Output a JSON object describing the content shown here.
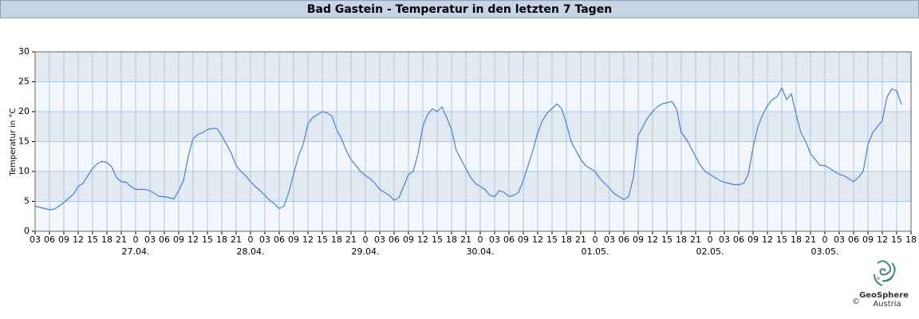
{
  "chart_data": {
    "type": "line",
    "title": "Bad Gastein - Temperatur in den letzten 7 Tagen",
    "y_label": "Temperatur in °C",
    "logo": {
      "name": "GeoSphere",
      "country": "Austria",
      "copyright": "©"
    },
    "color": "#4a7fd6",
    "grid": true,
    "ylim": [
      0,
      30
    ],
    "yticks": [
      0,
      5,
      10,
      15,
      20,
      25,
      30
    ],
    "xlim": [
      0,
      183
    ],
    "xticks": [
      {
        "value": 0,
        "label": "03"
      },
      {
        "value": 3,
        "label": "06"
      },
      {
        "value": 6,
        "label": "09"
      },
      {
        "value": 9,
        "label": "12"
      },
      {
        "value": 12,
        "label": "15"
      },
      {
        "value": 15,
        "label": "18"
      },
      {
        "value": 18,
        "label": "21"
      },
      {
        "value": 21,
        "label": "0"
      },
      {
        "value": 24,
        "label": "03"
      },
      {
        "value": 27,
        "label": "06"
      },
      {
        "value": 30,
        "label": "09"
      },
      {
        "value": 33,
        "label": "12"
      },
      {
        "value": 36,
        "label": "15"
      },
      {
        "value": 39,
        "label": "18"
      },
      {
        "value": 42,
        "label": "21"
      },
      {
        "value": 45,
        "label": "0"
      },
      {
        "value": 48,
        "label": "03"
      },
      {
        "value": 51,
        "label": "06"
      },
      {
        "value": 54,
        "label": "09"
      },
      {
        "value": 57,
        "label": "12"
      },
      {
        "value": 60,
        "label": "15"
      },
      {
        "value": 63,
        "label": "18"
      },
      {
        "value": 66,
        "label": "21"
      },
      {
        "value": 69,
        "label": "0"
      },
      {
        "value": 72,
        "label": "03"
      },
      {
        "value": 75,
        "label": "06"
      },
      {
        "value": 78,
        "label": "09"
      },
      {
        "value": 81,
        "label": "12"
      },
      {
        "value": 84,
        "label": "15"
      },
      {
        "value": 87,
        "label": "18"
      },
      {
        "value": 90,
        "label": "21"
      },
      {
        "value": 93,
        "label": "0"
      },
      {
        "value": 96,
        "label": "03"
      },
      {
        "value": 99,
        "label": "06"
      },
      {
        "value": 102,
        "label": "09"
      },
      {
        "value": 105,
        "label": "12"
      },
      {
        "value": 108,
        "label": "15"
      },
      {
        "value": 111,
        "label": "18"
      },
      {
        "value": 114,
        "label": "21"
      },
      {
        "value": 117,
        "label": "0"
      },
      {
        "value": 120,
        "label": "03"
      },
      {
        "value": 123,
        "label": "06"
      },
      {
        "value": 126,
        "label": "09"
      },
      {
        "value": 129,
        "label": "12"
      },
      {
        "value": 132,
        "label": "15"
      },
      {
        "value": 135,
        "label": "18"
      },
      {
        "value": 138,
        "label": "21"
      },
      {
        "value": 141,
        "label": "0"
      },
      {
        "value": 144,
        "label": "03"
      },
      {
        "value": 147,
        "label": "06"
      },
      {
        "value": 150,
        "label": "09"
      },
      {
        "value": 153,
        "label": "12"
      },
      {
        "value": 156,
        "label": "15"
      },
      {
        "value": 159,
        "label": "18"
      },
      {
        "value": 162,
        "label": "21"
      },
      {
        "value": 165,
        "label": "0"
      },
      {
        "value": 168,
        "label": "03"
      },
      {
        "value": 171,
        "label": "06"
      },
      {
        "value": 174,
        "label": "09"
      },
      {
        "value": 177,
        "label": "12"
      },
      {
        "value": 180,
        "label": "15"
      },
      {
        "value": 183,
        "label": "18"
      }
    ],
    "date_ticks": [
      {
        "value": 21,
        "label": "27.04."
      },
      {
        "value": 45,
        "label": "28.04."
      },
      {
        "value": 69,
        "label": "29.04."
      },
      {
        "value": 93,
        "label": "30.04."
      },
      {
        "value": 117,
        "label": "01.05."
      },
      {
        "value": 141,
        "label": "02.05."
      },
      {
        "value": 165,
        "label": "03.05."
      }
    ],
    "x": [
      0,
      1,
      2,
      3,
      4,
      5,
      6,
      7,
      8,
      9,
      10,
      11,
      12,
      13,
      14,
      15,
      16,
      17,
      18,
      19,
      20,
      21,
      22,
      23,
      24,
      25,
      26,
      27,
      28,
      29,
      30,
      31,
      32,
      33,
      34,
      35,
      36,
      37,
      38,
      39,
      40,
      41,
      42,
      43,
      44,
      45,
      46,
      47,
      48,
      49,
      50,
      51,
      52,
      53,
      54,
      55,
      56,
      57,
      58,
      59,
      60,
      61,
      62,
      63,
      64,
      65,
      66,
      67,
      68,
      69,
      70,
      71,
      72,
      73,
      74,
      75,
      76,
      77,
      78,
      79,
      80,
      81,
      82,
      83,
      84,
      85,
      86,
      87,
      88,
      89,
      90,
      91,
      92,
      93,
      94,
      95,
      96,
      97,
      98,
      99,
      100,
      101,
      102,
      103,
      104,
      105,
      106,
      107,
      108,
      109,
      110,
      111,
      112,
      113,
      114,
      115,
      116,
      117,
      118,
      119,
      120,
      121,
      122,
      123,
      124,
      125,
      126,
      127,
      128,
      129,
      130,
      131,
      132,
      133,
      134,
      135,
      136,
      137,
      138,
      139,
      140,
      141,
      142,
      143,
      144,
      145,
      146,
      147,
      148,
      149,
      150,
      151,
      152,
      153,
      154,
      155,
      156,
      157,
      158,
      159,
      160,
      161,
      162,
      163,
      164,
      165,
      166,
      167,
      168,
      169,
      170,
      171,
      172,
      173,
      174,
      175,
      176,
      177,
      178,
      179,
      180,
      181
    ],
    "values": [
      4.2,
      4.0,
      3.8,
      3.6,
      3.7,
      4.2,
      4.8,
      5.5,
      6.2,
      7.5,
      8.0,
      9.3,
      10.5,
      11.3,
      11.7,
      11.5,
      10.8,
      9.0,
      8.3,
      8.2,
      7.5,
      7.0,
      7.0,
      7.0,
      6.8,
      6.3,
      5.8,
      5.8,
      5.6,
      5.4,
      6.8,
      8.5,
      12.5,
      15.5,
      16.2,
      16.5,
      17.0,
      17.2,
      17.2,
      16.0,
      14.5,
      13.0,
      11.0,
      10.0,
      9.3,
      8.3,
      7.5,
      6.8,
      6.0,
      5.2,
      4.6,
      3.8,
      4.2,
      6.5,
      9.5,
      12.5,
      14.5,
      18.0,
      19.0,
      19.5,
      20.0,
      19.8,
      19.3,
      17.0,
      15.5,
      13.5,
      12.0,
      11.0,
      10.0,
      9.3,
      8.8,
      8.0,
      7.0,
      6.5,
      6.0,
      5.2,
      5.6,
      7.5,
      9.5,
      10.0,
      13.0,
      17.5,
      19.5,
      20.5,
      20.0,
      20.8,
      19.0,
      17.0,
      13.5,
      12.0,
      10.5,
      9.0,
      8.0,
      7.5,
      7.0,
      6.0,
      5.8,
      6.8,
      6.5,
      5.8,
      6.0,
      6.5,
      8.5,
      11.0,
      13.5,
      16.5,
      18.5,
      19.8,
      20.5,
      21.3,
      20.5,
      18.0,
      15.0,
      13.5,
      12.0,
      11.0,
      10.5,
      10.0,
      8.8,
      8.0,
      7.2,
      6.3,
      5.8,
      5.3,
      5.8,
      9.0,
      16.0,
      17.5,
      19.0,
      20.0,
      20.8,
      21.3,
      21.5,
      21.7,
      20.5,
      16.5,
      15.5,
      14.0,
      12.5,
      11.0,
      10.0,
      9.5,
      9.0,
      8.5,
      8.2,
      8.0,
      7.8,
      7.8,
      8.0,
      9.5,
      14.0,
      17.5,
      19.5,
      21.0,
      22.0,
      22.5,
      24.0,
      22.0,
      23.0,
      19.5,
      16.5,
      15.0,
      13.0,
      12.0,
      11.0,
      11.0,
      10.5,
      10.0,
      9.5,
      9.3,
      8.8,
      8.3,
      9.0,
      10.0,
      14.5,
      16.5,
      17.5,
      18.5,
      22.5,
      23.8,
      23.5,
      21.2
    ]
  }
}
